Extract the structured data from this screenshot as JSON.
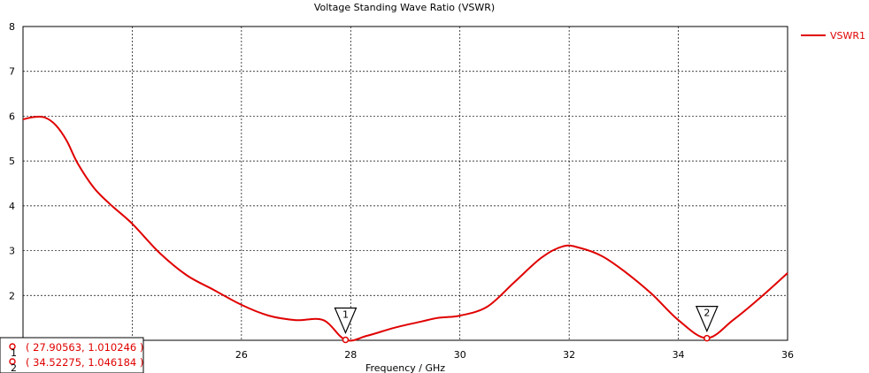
{
  "chart_data": {
    "type": "line",
    "title": "Voltage Standing Wave Ratio (VSWR)",
    "xlabel": "Frequency / GHz",
    "ylabel": "",
    "xlim": [
      22,
      36
    ],
    "ylim": [
      1,
      8
    ],
    "xticks": [
      26,
      28,
      30,
      32,
      34,
      36
    ],
    "yticks": [
      2,
      3,
      4,
      5,
      6,
      7,
      8
    ],
    "grid": true,
    "legend": "top-right",
    "series": [
      {
        "name": "VSWR1",
        "color": "#e00000",
        "x": [
          22.0,
          22.2,
          22.4,
          22.6,
          22.8,
          23.0,
          23.3,
          23.6,
          24.0,
          24.5,
          25.0,
          25.5,
          26.0,
          26.5,
          27.0,
          27.5,
          27.905,
          28.3,
          28.8,
          29.3,
          29.6,
          30.0,
          30.5,
          31.0,
          31.5,
          31.9,
          32.2,
          32.6,
          33.0,
          33.5,
          34.0,
          34.52,
          35.0,
          35.5,
          36.0
        ],
        "y": [
          5.93,
          5.98,
          5.97,
          5.8,
          5.45,
          4.95,
          4.4,
          4.03,
          3.6,
          2.95,
          2.45,
          2.12,
          1.79,
          1.55,
          1.45,
          1.45,
          1.01,
          1.1,
          1.28,
          1.42,
          1.5,
          1.55,
          1.75,
          2.3,
          2.85,
          3.1,
          3.06,
          2.88,
          2.55,
          2.05,
          1.45,
          1.05,
          1.45,
          1.95,
          2.5
        ]
      }
    ],
    "markers": [
      {
        "id": "1",
        "label": "1",
        "x": 27.90563,
        "y": 1.010246,
        "readout": "( 27.90563, 1.010246 )"
      },
      {
        "id": "2",
        "label": "2",
        "x": 34.52275,
        "y": 1.046184,
        "readout": "( 34.52275, 1.046184 )"
      }
    ]
  }
}
